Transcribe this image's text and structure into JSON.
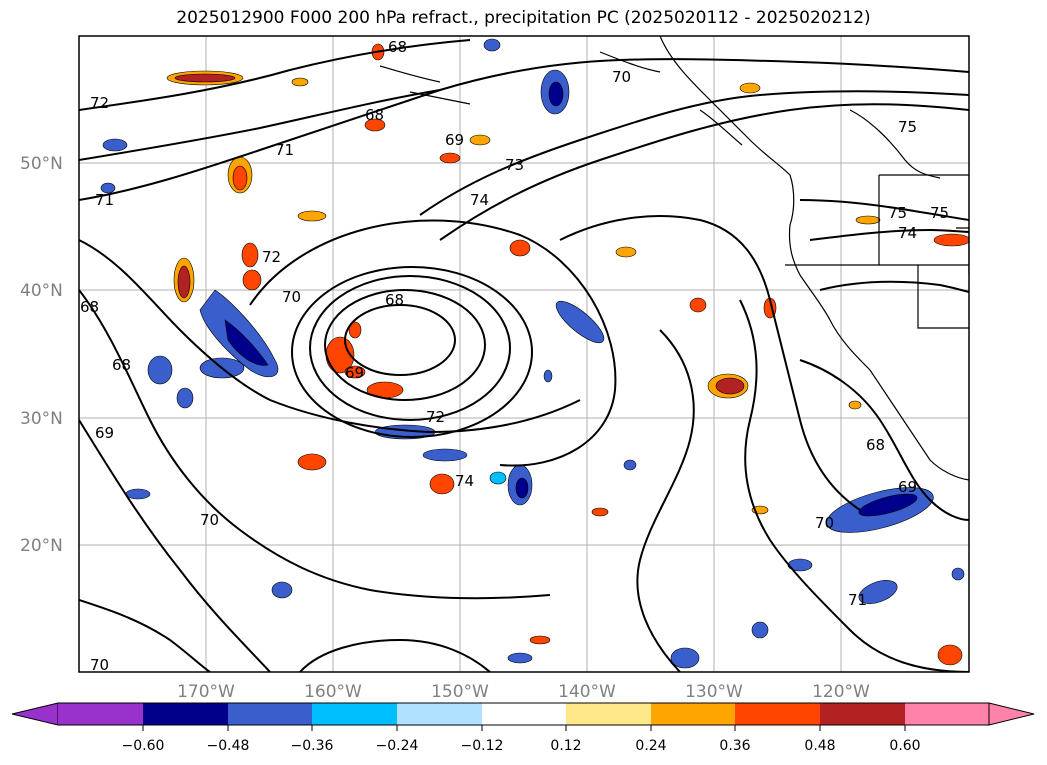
{
  "title": "2025012900 F000 200 hPa refract., precipitation PC (2025020112 - 2025020212)",
  "lat_labels": [
    "50°N",
    "40°N",
    "30°N",
    "20°N"
  ],
  "lon_labels": [
    "170°W",
    "160°W",
    "150°W",
    "140°W",
    "130°W",
    "120°W"
  ],
  "colorbar": {
    "ticks": [
      "−0.60",
      "−0.48",
      "−0.36",
      "−0.24",
      "−0.12",
      "0.12",
      "0.24",
      "0.36",
      "0.48",
      "0.60"
    ],
    "colors": [
      "#9932cc",
      "#00008b",
      "#3a5fcd",
      "#00bfff",
      "#b0e2ff",
      "#ffffff",
      "#ffe88a",
      "#ffa500",
      "#ff4500",
      "#b22222",
      "#ff82ab"
    ]
  },
  "contour_labels": [
    "68",
    "68",
    "69",
    "70",
    "71",
    "73",
    "74",
    "71",
    "72",
    "70",
    "68",
    "69",
    "68",
    "69",
    "72",
    "74",
    "70",
    "75",
    "75",
    "74",
    "68",
    "69",
    "70",
    "71",
    "72",
    "70",
    "68",
    "75"
  ]
}
